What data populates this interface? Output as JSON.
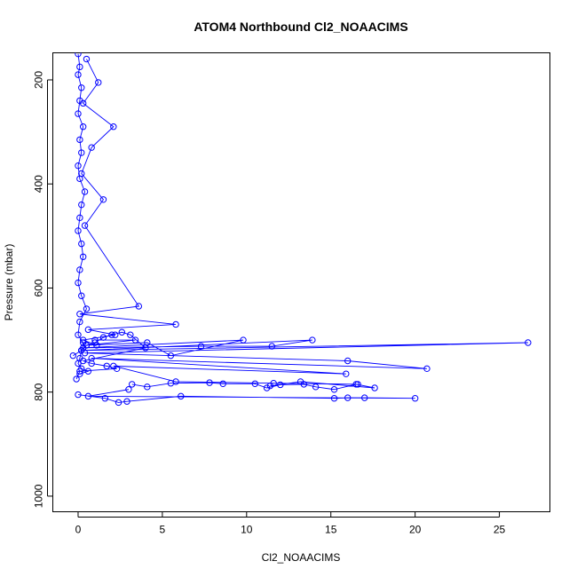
{
  "chart_data": {
    "type": "line",
    "title": "ATOM4 Northbound Cl2_NOAACIMS",
    "xlabel": "Cl2_NOAACIMS",
    "ylabel": "Pressure (mbar)",
    "xlim": [
      -1.5,
      28.0
    ],
    "ylim": [
      1030,
      148
    ],
    "y_inverted": true,
    "x_ticks": [
      0,
      5,
      10,
      15,
      20,
      25
    ],
    "y_ticks": [
      200,
      400,
      600,
      800,
      1000
    ],
    "grid": false,
    "legend": "none",
    "series": [
      {
        "color": "#0000ff",
        "x": [
          0.0,
          0.1,
          0.0,
          0.2,
          0.1,
          0.0,
          0.3,
          0.1,
          0.2,
          0.0,
          0.1,
          0.4,
          0.2,
          0.1,
          0.0,
          0.2,
          0.3,
          0.1,
          0.0,
          0.2,
          0.5,
          0.1,
          0.0,
          0.3,
          0.2,
          0.1,
          0.0,
          0.2,
          0.6,
          0.1
        ],
        "y": [
          150,
          175,
          190,
          215,
          240,
          265,
          290,
          315,
          340,
          365,
          390,
          415,
          440,
          465,
          490,
          515,
          540,
          565,
          590,
          615,
          640,
          665,
          690,
          705,
          720,
          735,
          745,
          755,
          760,
          765
        ]
      },
      {
        "color": "#0000ff",
        "x": [
          0.5,
          1.2,
          0.3,
          2.1,
          0.8,
          0.2,
          1.5,
          0.4,
          3.6,
          0.1,
          5.8,
          0.6,
          2.2,
          0.3,
          1.1
        ],
        "y": [
          160,
          205,
          245,
          290,
          330,
          380,
          430,
          480,
          635,
          650,
          670,
          680,
          690,
          700,
          710
        ]
      },
      {
        "color": "#0000ff",
        "x": [
          1.0,
          3.4,
          0.5,
          4.1,
          5.5,
          9.8,
          0.3,
          7.3,
          11.5,
          13.9,
          0.2,
          26.7,
          0.4,
          16.0,
          20.7,
          0.8,
          15.9,
          2.1,
          5.8,
          11.6,
          16.6
        ],
        "y": [
          700,
          700,
          710,
          705,
          730,
          700,
          715,
          712,
          712,
          700,
          720,
          705,
          725,
          740,
          755,
          735,
          765,
          750,
          780,
          783,
          785
        ]
      },
      {
        "color": "#0000ff",
        "x": [
          3.2,
          4.1,
          5.5,
          7.8,
          8.6,
          10.5,
          11.2,
          12.0,
          13.4,
          14.1,
          15.2,
          16.5,
          17.6,
          13.2,
          11.4
        ],
        "y": [
          785,
          790,
          783,
          782,
          784,
          784,
          792,
          786,
          785,
          790,
          795,
          785,
          792,
          780,
          788
        ]
      },
      {
        "color": "#0000ff",
        "x": [
          0.0,
          1.6,
          2.4,
          2.9,
          6.1,
          15.2,
          16.0,
          17.0,
          20.0,
          0.6,
          3.0
        ],
        "y": [
          805,
          812,
          820,
          818,
          808,
          812,
          811,
          811,
          812,
          808,
          795
        ]
      },
      {
        "color": "#0000ff",
        "x": [
          -0.3,
          0.2,
          0.5,
          1.0,
          1.5,
          2.0,
          2.6,
          3.1,
          4.0,
          0.3,
          0.8,
          1.7,
          2.3,
          0.1,
          -0.1
        ],
        "y": [
          730,
          720,
          710,
          705,
          695,
          690,
          685,
          690,
          715,
          740,
          745,
          750,
          755,
          760,
          775
        ]
      }
    ]
  }
}
